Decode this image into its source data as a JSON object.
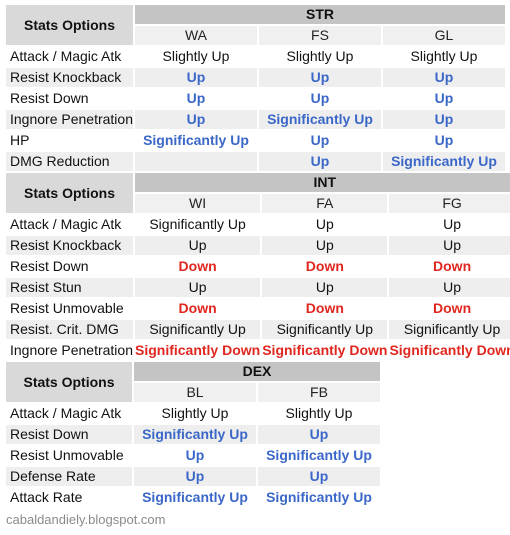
{
  "header_label": "Stats Options",
  "colors": {
    "up": "#3a67c8",
    "down": "#e0271f",
    "plain": "#111111"
  },
  "sections": [
    {
      "group": "STR",
      "columns": [
        "WA",
        "FS",
        "GL"
      ],
      "rows": [
        {
          "stat": "Attack / Magic Atk",
          "values": [
            [
              "Slightly Up",
              "plain"
            ],
            [
              "Slightly Up",
              "plain"
            ],
            [
              "Slightly Up",
              "plain"
            ]
          ]
        },
        {
          "stat": "Resist Knockback",
          "values": [
            [
              "Up",
              "up"
            ],
            [
              "Up",
              "up"
            ],
            [
              "Up",
              "up"
            ]
          ]
        },
        {
          "stat": "Resist Down",
          "values": [
            [
              "Up",
              "up"
            ],
            [
              "Up",
              "up"
            ],
            [
              "Up",
              "up"
            ]
          ]
        },
        {
          "stat": "Ingnore Penetration",
          "values": [
            [
              "Up",
              "up"
            ],
            [
              "Significantly Up",
              "up"
            ],
            [
              "Up",
              "up"
            ]
          ]
        },
        {
          "stat": "HP",
          "values": [
            [
              "Significantly Up",
              "up"
            ],
            [
              "Up",
              "up"
            ],
            [
              "Up",
              "up"
            ]
          ]
        },
        {
          "stat": "DMG Reduction",
          "values": [
            [
              "",
              "plain"
            ],
            [
              "Up",
              "up"
            ],
            [
              "Significantly Up",
              "up"
            ]
          ]
        }
      ]
    },
    {
      "group": "INT",
      "columns": [
        "WI",
        "FA",
        "FG"
      ],
      "rows": [
        {
          "stat": "Attack / Magic Atk",
          "values": [
            [
              "Significantly Up",
              "plain"
            ],
            [
              "Up",
              "plain"
            ],
            [
              "Up",
              "plain"
            ]
          ]
        },
        {
          "stat": "Resist Knockback",
          "values": [
            [
              "Up",
              "plain"
            ],
            [
              "Up",
              "plain"
            ],
            [
              "Up",
              "plain"
            ]
          ]
        },
        {
          "stat": "Resist Down",
          "values": [
            [
              "Down",
              "down"
            ],
            [
              "Down",
              "down"
            ],
            [
              "Down",
              "down"
            ]
          ]
        },
        {
          "stat": "Resist Stun",
          "values": [
            [
              "Up",
              "plain"
            ],
            [
              "Up",
              "plain"
            ],
            [
              "Up",
              "plain"
            ]
          ]
        },
        {
          "stat": "Resist Unmovable",
          "values": [
            [
              "Down",
              "down"
            ],
            [
              "Down",
              "down"
            ],
            [
              "Down",
              "down"
            ]
          ]
        },
        {
          "stat": "Resist. Crit. DMG",
          "values": [
            [
              "Significantly Up",
              "plain"
            ],
            [
              "Significantly Up",
              "plain"
            ],
            [
              "Significantly Up",
              "plain"
            ]
          ]
        },
        {
          "stat": "Ingnore Penetration",
          "values": [
            [
              "Significantly Down",
              "down"
            ],
            [
              "Significantly Down",
              "down"
            ],
            [
              "Significantly Down",
              "down"
            ]
          ]
        }
      ]
    },
    {
      "group": "DEX",
      "columns": [
        "BL",
        "FB"
      ],
      "rows": [
        {
          "stat": "Attack / Magic Atk",
          "values": [
            [
              "Slightly Up",
              "plain"
            ],
            [
              "Slightly Up",
              "plain"
            ]
          ]
        },
        {
          "stat": "Resist Down",
          "values": [
            [
              "Significantly Up",
              "up"
            ],
            [
              "Up",
              "up"
            ]
          ]
        },
        {
          "stat": "Resist Unmovable",
          "values": [
            [
              "Up",
              "up"
            ],
            [
              "Significantly Up",
              "up"
            ]
          ]
        },
        {
          "stat": "Defense Rate",
          "values": [
            [
              "Up",
              "up"
            ],
            [
              "Up",
              "up"
            ]
          ]
        },
        {
          "stat": "Attack Rate",
          "values": [
            [
              "Significantly Up",
              "up"
            ],
            [
              "Significantly Up",
              "up"
            ]
          ]
        }
      ]
    }
  ],
  "footer": "cabaldandiely.blogspot.com"
}
